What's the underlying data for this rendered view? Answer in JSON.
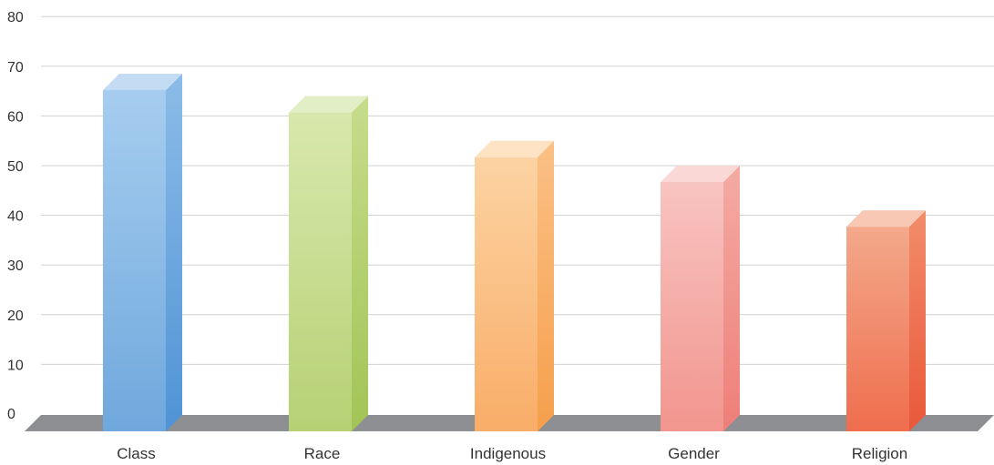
{
  "chart_data": {
    "type": "bar",
    "style": "3d-column",
    "categories": [
      "Class",
      "Race",
      "Indigenous",
      "Gender",
      "Religion"
    ],
    "values": [
      68.5,
      64,
      55,
      50,
      41
    ],
    "ylim": [
      0,
      80
    ],
    "yticks": [
      0,
      10,
      20,
      30,
      40,
      50,
      60,
      70,
      80
    ],
    "grid": true,
    "title": "",
    "xlabel": "",
    "ylabel": "",
    "colors": [
      {
        "top": "#c4dcf3",
        "front_light": "#a6cdef",
        "front_dark": "#6fa8dd",
        "side_light": "#8cbce8",
        "side_dark": "#4f93d6"
      },
      {
        "top": "#e2efc6",
        "front_light": "#d8e8ad",
        "front_dark": "#b6d174",
        "side_light": "#c6dd8c",
        "side_dark": "#a2c456"
      },
      {
        "top": "#fde3c4",
        "front_light": "#fcd3a2",
        "front_dark": "#f9ad68",
        "side_light": "#fbc086",
        "side_dark": "#f69f4c"
      },
      {
        "top": "#fad8d6",
        "front_light": "#f8c4c1",
        "front_dark": "#f2958e",
        "side_light": "#f4aaa4",
        "side_dark": "#ee7f78"
      },
      {
        "top": "#f8c8b4",
        "front_light": "#f3a98a",
        "front_dark": "#ef6e4e",
        "side_light": "#f28d6a",
        "side_dark": "#e9583a"
      }
    ],
    "floor_color": "#8e8f93",
    "grid_color": "#d0d0d0"
  }
}
